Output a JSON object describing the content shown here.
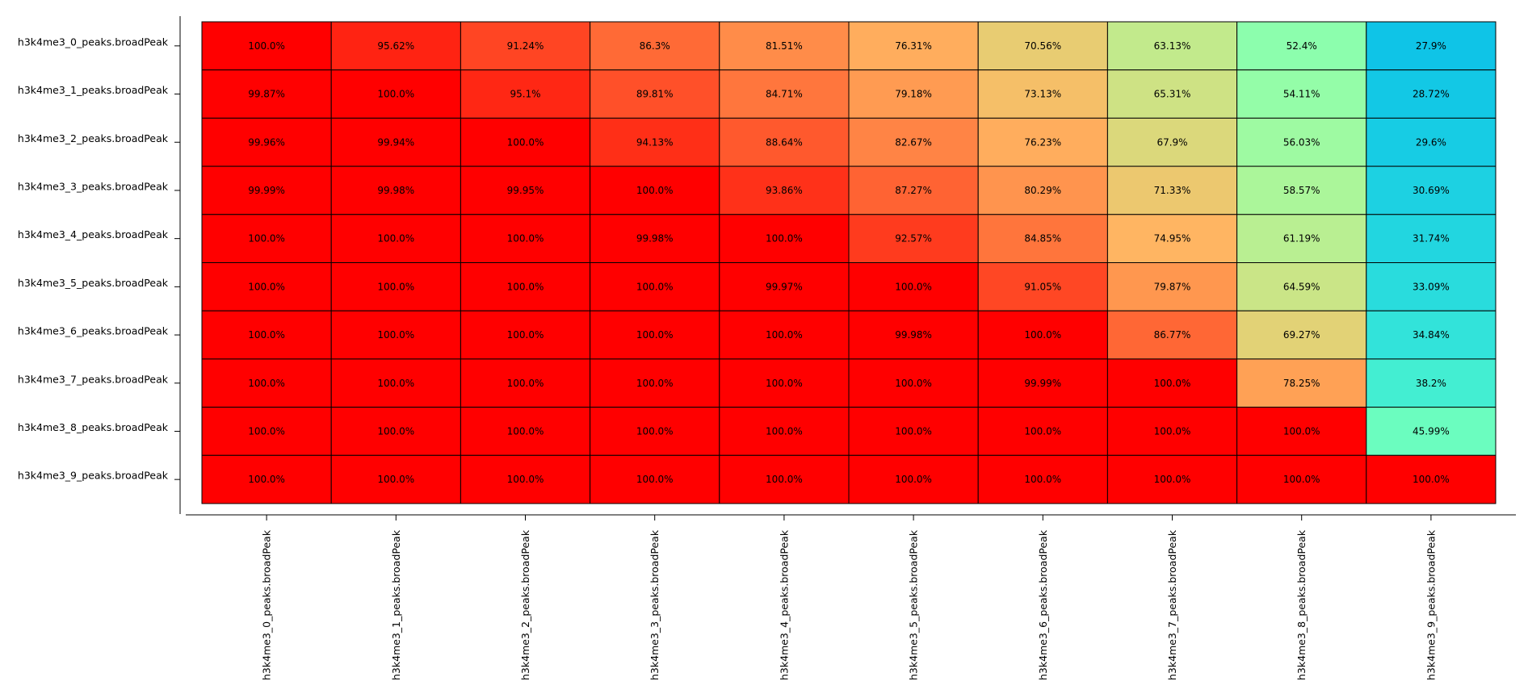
{
  "chart_data": {
    "type": "heatmap",
    "title": "",
    "xlabel": "",
    "ylabel": "",
    "rows": [
      "h3k4me3_0_peaks.broadPeak",
      "h3k4me3_1_peaks.broadPeak",
      "h3k4me3_2_peaks.broadPeak",
      "h3k4me3_3_peaks.broadPeak",
      "h3k4me3_4_peaks.broadPeak",
      "h3k4me3_5_peaks.broadPeak",
      "h3k4me3_6_peaks.broadPeak",
      "h3k4me3_7_peaks.broadPeak",
      "h3k4me3_8_peaks.broadPeak",
      "h3k4me3_9_peaks.broadPeak"
    ],
    "columns": [
      "h3k4me3_0_peaks.broadPeak",
      "h3k4me3_1_peaks.broadPeak",
      "h3k4me3_2_peaks.broadPeak",
      "h3k4me3_3_peaks.broadPeak",
      "h3k4me3_4_peaks.broadPeak",
      "h3k4me3_5_peaks.broadPeak",
      "h3k4me3_6_peaks.broadPeak",
      "h3k4me3_7_peaks.broadPeak",
      "h3k4me3_8_peaks.broadPeak",
      "h3k4me3_9_peaks.broadPeak"
    ],
    "values": [
      [
        100.0,
        95.62,
        91.24,
        86.3,
        81.51,
        76.31,
        70.56,
        63.13,
        52.4,
        27.9
      ],
      [
        99.87,
        100.0,
        95.1,
        89.81,
        84.71,
        79.18,
        73.13,
        65.31,
        54.11,
        28.72
      ],
      [
        99.96,
        99.94,
        100.0,
        94.13,
        88.64,
        82.67,
        76.23,
        67.9,
        56.03,
        29.6
      ],
      [
        99.99,
        99.98,
        99.95,
        100.0,
        93.86,
        87.27,
        80.29,
        71.33,
        58.57,
        30.69
      ],
      [
        100.0,
        100.0,
        100.0,
        99.98,
        100.0,
        92.57,
        84.85,
        74.95,
        61.19,
        31.74
      ],
      [
        100.0,
        100.0,
        100.0,
        100.0,
        99.97,
        100.0,
        91.05,
        79.87,
        64.59,
        33.09
      ],
      [
        100.0,
        100.0,
        100.0,
        100.0,
        100.0,
        99.98,
        100.0,
        86.77,
        69.27,
        34.84
      ],
      [
        100.0,
        100.0,
        100.0,
        100.0,
        100.0,
        100.0,
        99.99,
        100.0,
        78.25,
        38.2
      ],
      [
        100.0,
        100.0,
        100.0,
        100.0,
        100.0,
        100.0,
        100.0,
        100.0,
        100.0,
        45.99
      ],
      [
        100.0,
        100.0,
        100.0,
        100.0,
        100.0,
        100.0,
        100.0,
        100.0,
        100.0,
        100.0
      ]
    ],
    "labels": [
      [
        "100.0%",
        "95.62%",
        "91.24%",
        "86.3%",
        "81.51%",
        "76.31%",
        "70.56%",
        "63.13%",
        "52.4%",
        "27.9%"
      ],
      [
        "99.87%",
        "100.0%",
        "95.1%",
        "89.81%",
        "84.71%",
        "79.18%",
        "73.13%",
        "65.31%",
        "54.11%",
        "28.72%"
      ],
      [
        "99.96%",
        "99.94%",
        "100.0%",
        "94.13%",
        "88.64%",
        "82.67%",
        "76.23%",
        "67.9%",
        "56.03%",
        "29.6%"
      ],
      [
        "99.99%",
        "99.98%",
        "99.95%",
        "100.0%",
        "93.86%",
        "87.27%",
        "80.29%",
        "71.33%",
        "58.57%",
        "30.69%"
      ],
      [
        "100.0%",
        "100.0%",
        "100.0%",
        "99.98%",
        "100.0%",
        "92.57%",
        "84.85%",
        "74.95%",
        "61.19%",
        "31.74%"
      ],
      [
        "100.0%",
        "100.0%",
        "100.0%",
        "100.0%",
        "99.97%",
        "100.0%",
        "91.05%",
        "79.87%",
        "64.59%",
        "33.09%"
      ],
      [
        "100.0%",
        "100.0%",
        "100.0%",
        "100.0%",
        "100.0%",
        "99.98%",
        "100.0%",
        "86.77%",
        "69.27%",
        "34.84%"
      ],
      [
        "100.0%",
        "100.0%",
        "100.0%",
        "100.0%",
        "100.0%",
        "100.0%",
        "99.99%",
        "100.0%",
        "78.25%",
        "38.2%"
      ],
      [
        "100.0%",
        "100.0%",
        "100.0%",
        "100.0%",
        "100.0%",
        "100.0%",
        "100.0%",
        "100.0%",
        "100.0%",
        "45.99%"
      ],
      [
        "100.0%",
        "100.0%",
        "100.0%",
        "100.0%",
        "100.0%",
        "100.0%",
        "100.0%",
        "100.0%",
        "100.0%",
        "100.0%"
      ]
    ],
    "colormap": "rainbow",
    "color_range": [
      0,
      100
    ],
    "grid": true,
    "legend": "none"
  }
}
